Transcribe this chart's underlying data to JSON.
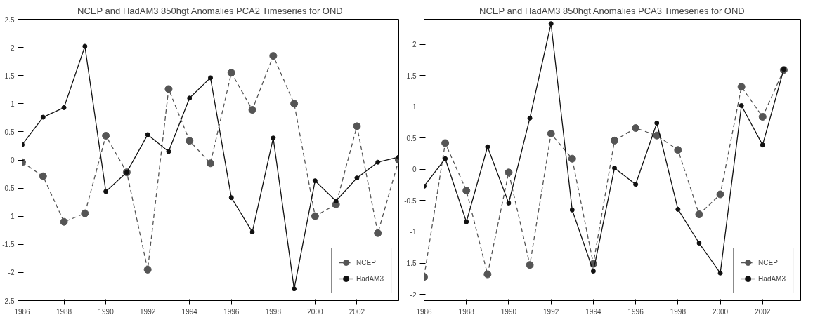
{
  "chart_data": [
    {
      "type": "line",
      "title": "NCEP and HadAM3 850hgt Anomalies PCA2 Timeseries for OND",
      "x": [
        1986,
        1987,
        1988,
        1989,
        1990,
        1991,
        1992,
        1993,
        1994,
        1995,
        1996,
        1997,
        1998,
        1999,
        2000,
        2001,
        2002,
        2003,
        2004
      ],
      "series": [
        {
          "name": "NCEP",
          "color": "#555555",
          "line_style": "dashed",
          "values": [
            -0.04,
            -0.29,
            -1.1,
            -0.95,
            0.43,
            -0.22,
            -1.95,
            1.26,
            0.34,
            -0.06,
            1.55,
            0.89,
            1.85,
            1.0,
            -1.0,
            -0.79,
            0.6,
            -1.3,
            0.0
          ]
        },
        {
          "name": "HadAM3",
          "color": "#111111",
          "line_style": "solid",
          "values": [
            0.27,
            0.76,
            0.93,
            2.02,
            -0.56,
            -0.22,
            0.45,
            0.15,
            1.1,
            1.46,
            -0.67,
            -1.28,
            0.39,
            -2.29,
            -0.37,
            -0.73,
            -0.32,
            -0.04,
            0.05
          ]
        }
      ],
      "xlim": [
        1986,
        2004
      ],
      "xticks": [
        1986,
        1988,
        1990,
        1992,
        1994,
        1996,
        1998,
        2000,
        2002
      ],
      "ylim": [
        -2.5,
        2.5
      ],
      "yticks": [
        -2.5,
        -2,
        -1.5,
        -1,
        -0.5,
        0,
        0.5,
        1,
        1.5,
        2,
        2.5
      ],
      "marker": "circle",
      "grid": false,
      "legend": "bottom right"
    },
    {
      "type": "line",
      "title": "NCEP and HadAM3 850hgt Anomalies PCA3 Timeseries for OND",
      "x": [
        1986,
        1987,
        1988,
        1989,
        1990,
        1991,
        1992,
        1993,
        1994,
        1995,
        1996,
        1997,
        1998,
        1999,
        2000,
        2001,
        2002,
        2003
      ],
      "series": [
        {
          "name": "NCEP",
          "color": "#555555",
          "line_style": "dashed",
          "values": [
            -1.72,
            0.42,
            -0.34,
            -1.68,
            -0.05,
            -1.53,
            0.57,
            0.17,
            -1.51,
            0.46,
            0.66,
            0.54,
            0.31,
            -0.72,
            -0.4,
            1.32,
            0.84,
            1.59
          ]
        },
        {
          "name": "HadAM3",
          "color": "#111111",
          "line_style": "solid",
          "values": [
            -0.27,
            0.17,
            -0.84,
            0.36,
            -0.54,
            0.82,
            2.33,
            -0.65,
            -1.63,
            0.02,
            -0.24,
            0.74,
            -0.64,
            -1.18,
            -1.66,
            1.02,
            0.39,
            1.6
          ]
        }
      ],
      "xlim": [
        1986,
        2003.8
      ],
      "xticks": [
        1986,
        1988,
        1990,
        1992,
        1994,
        1996,
        1998,
        2000,
        2002
      ],
      "ylim": [
        -2.1,
        2.4
      ],
      "yticks": [
        -2,
        -1.5,
        -1,
        -0.5,
        0,
        0.5,
        1,
        1.5,
        2
      ],
      "marker": "circle",
      "grid": false,
      "legend": "bottom right"
    }
  ]
}
